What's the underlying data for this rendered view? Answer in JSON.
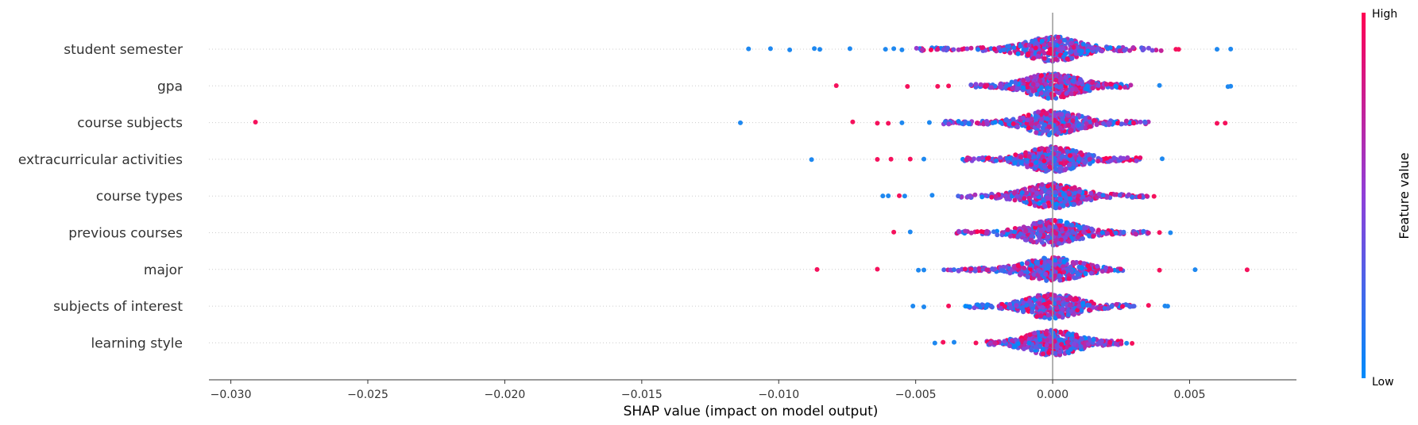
{
  "chart_data": {
    "type": "scatter",
    "subtype": "shap-beeswarm",
    "xlabel": "SHAP value (impact on model output)",
    "xlim": [
      -0.0308,
      0.0089
    ],
    "xticks": [
      -0.03,
      -0.025,
      -0.02,
      -0.015,
      -0.01,
      -0.005,
      0.0,
      0.005
    ],
    "xtick_labels": [
      "−0.030",
      "−0.025",
      "−0.020",
      "−0.015",
      "−0.010",
      "−0.005",
      "0.000",
      "0.005"
    ],
    "features": [
      "student semester",
      "gpa",
      "course subjects",
      "extracurricular activities",
      "course types",
      "previous courses",
      "major",
      "subjects of interest",
      "learning style"
    ],
    "series": [
      {
        "feature": "student semester",
        "low_color_outliers": [
          -0.0111,
          -0.0103,
          -0.0096,
          -0.0087,
          -0.0085,
          -0.0074,
          -0.0061,
          -0.0058,
          -0.0055,
          0.006,
          0.0065
        ],
        "high_color_outliers": [
          0.0045,
          0.0046
        ],
        "spread_min": -0.005,
        "spread_max": 0.004
      },
      {
        "feature": "gpa",
        "low_color_outliers": [
          0.0039,
          0.0064,
          0.0065
        ],
        "high_color_outliers": [
          -0.0079,
          -0.0053,
          -0.0042,
          -0.0038
        ],
        "spread_min": -0.003,
        "spread_max": 0.003
      },
      {
        "feature": "course subjects",
        "low_color_outliers": [
          -0.0114,
          -0.0055,
          -0.0045
        ],
        "high_color_outliers": [
          -0.0291,
          -0.0073,
          -0.0064,
          -0.006,
          0.006,
          0.0063
        ],
        "spread_min": -0.004,
        "spread_max": 0.0035
      },
      {
        "feature": "extracurricular activities",
        "low_color_outliers": [
          -0.0088,
          -0.0047,
          0.004
        ],
        "high_color_outliers": [
          -0.0064,
          -0.0059,
          -0.0052
        ],
        "spread_min": -0.0033,
        "spread_max": 0.0032
      },
      {
        "feature": "course types",
        "low_color_outliers": [
          -0.0062,
          -0.006,
          -0.0054,
          -0.0044
        ],
        "high_color_outliers": [
          -0.0056,
          0.0037
        ],
        "spread_min": -0.0035,
        "spread_max": 0.0035
      },
      {
        "feature": "previous courses",
        "low_color_outliers": [
          -0.0052,
          0.0043
        ],
        "high_color_outliers": [
          -0.0058,
          0.0039
        ],
        "spread_min": -0.0035,
        "spread_max": 0.0035
      },
      {
        "feature": "major",
        "low_color_outliers": [
          -0.0049,
          -0.0047,
          0.0052
        ],
        "high_color_outliers": [
          -0.0086,
          -0.0064,
          0.0039,
          0.0071
        ],
        "spread_min": -0.004,
        "spread_max": 0.0027
      },
      {
        "feature": "subjects of interest",
        "low_color_outliers": [
          -0.0051,
          -0.0047,
          0.0041,
          0.0042
        ],
        "high_color_outliers": [
          -0.0038,
          0.0035
        ],
        "spread_min": -0.0032,
        "spread_max": 0.003
      },
      {
        "feature": "learning style",
        "low_color_outliers": [
          -0.0043,
          -0.0036,
          0.0027
        ],
        "high_color_outliers": [
          -0.004,
          -0.0028,
          0.0029
        ],
        "spread_min": -0.0024,
        "spread_max": 0.0025
      }
    ],
    "colorbar": {
      "title": "Feature value",
      "high_label": "High",
      "low_label": "Low",
      "high_color": "#ff0052",
      "low_color": "#008bfb"
    },
    "zero_line_color": "#999999",
    "grid": false,
    "legend_placement": "right"
  }
}
